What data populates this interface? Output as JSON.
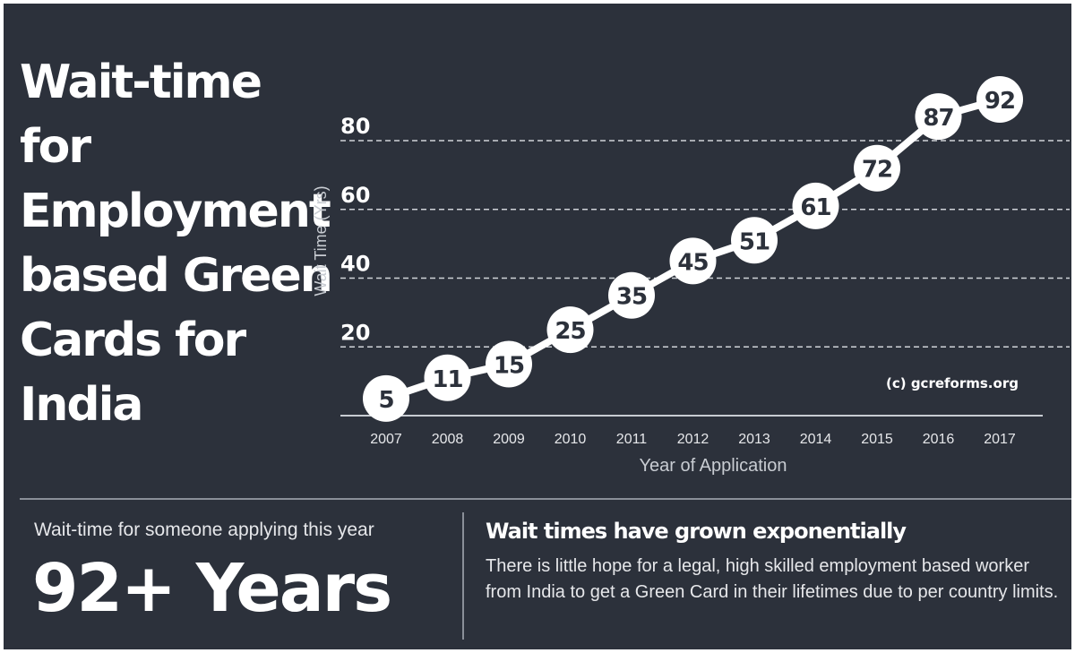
{
  "title_lines": [
    "Wait-time",
    "for",
    "Employment",
    "based Green",
    "Cards for",
    "India"
  ],
  "stat": {
    "label": "Wait-time for someone applying this year",
    "value": "92+ Years"
  },
  "note": {
    "heading": "Wait times have grown exponentially",
    "body": "There is little hope for a legal, high skilled employment based worker from India to get a Green Card in their lifetimes due to per country limits."
  },
  "chart_data": {
    "type": "line",
    "x": [
      "2007",
      "2008",
      "2009",
      "2010",
      "2011",
      "2012",
      "2013",
      "2014",
      "2015",
      "2016",
      "2017"
    ],
    "values": [
      5,
      11,
      15,
      25,
      35,
      45,
      51,
      61,
      72,
      87,
      92
    ],
    "xlabel": "Year of Application",
    "ylabel": "Wait Time (Yrs)",
    "yticks": [
      20,
      40,
      60,
      80
    ],
    "ylim": [
      0,
      80
    ],
    "grid": "dashed-horizontal",
    "data_labels": true,
    "watermark": "(c) gcreforms.org",
    "colors": {
      "background": "#2c313b",
      "line": "#ffffff",
      "marker": "#ffffff",
      "label": "#2c313b",
      "text": "#ffffff",
      "grid": "#d0d3d8"
    }
  }
}
